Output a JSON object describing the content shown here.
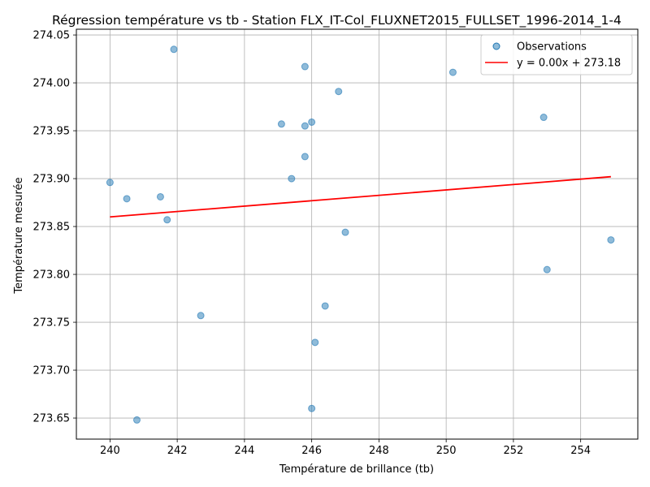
{
  "chart_data": {
    "type": "scatter",
    "title": "Régression température vs tb - Station FLX_IT-Col_FLUXNET2015_FULLSET_1996-2014_1-4",
    "xlabel": "Température de brillance (tb)",
    "ylabel": "Température mesurée",
    "xlim": [
      239.0,
      255.7
    ],
    "ylim": [
      273.628,
      274.056
    ],
    "xticks": [
      240,
      242,
      244,
      246,
      248,
      250,
      252,
      254
    ],
    "xtick_labels": [
      "240",
      "242",
      "244",
      "246",
      "248",
      "250",
      "252",
      "254"
    ],
    "yticks": [
      273.65,
      273.7,
      273.75,
      273.8,
      273.85,
      273.9,
      273.95,
      274.0,
      274.05
    ],
    "ytick_labels": [
      "273.65",
      "273.70",
      "273.75",
      "273.80",
      "273.85",
      "273.90",
      "273.95",
      "274.00",
      "274.05"
    ],
    "grid": true,
    "legend_position": "top-right",
    "series": [
      {
        "name": "Observations",
        "kind": "scatter",
        "color": "#1f77b4",
        "points": [
          {
            "x": 241.9,
            "y": 274.035
          },
          {
            "x": 245.8,
            "y": 274.017
          },
          {
            "x": 250.2,
            "y": 274.011
          },
          {
            "x": 246.8,
            "y": 273.991
          },
          {
            "x": 252.9,
            "y": 273.964
          },
          {
            "x": 246.0,
            "y": 273.959
          },
          {
            "x": 245.1,
            "y": 273.957
          },
          {
            "x": 245.8,
            "y": 273.955
          },
          {
            "x": 245.8,
            "y": 273.923
          },
          {
            "x": 245.4,
            "y": 273.9
          },
          {
            "x": 240.0,
            "y": 273.896
          },
          {
            "x": 241.5,
            "y": 273.881
          },
          {
            "x": 240.5,
            "y": 273.879
          },
          {
            "x": 241.7,
            "y": 273.857
          },
          {
            "x": 247.0,
            "y": 273.844
          },
          {
            "x": 254.9,
            "y": 273.836
          },
          {
            "x": 253.0,
            "y": 273.805
          },
          {
            "x": 246.4,
            "y": 273.767
          },
          {
            "x": 242.7,
            "y": 273.757
          },
          {
            "x": 246.1,
            "y": 273.729
          },
          {
            "x": 246.0,
            "y": 273.66
          },
          {
            "x": 240.8,
            "y": 273.648
          }
        ]
      },
      {
        "name": "y = 0.00x + 273.18",
        "kind": "line",
        "color": "#ff0000",
        "points": [
          {
            "x": 240.0,
            "y": 273.86
          },
          {
            "x": 254.9,
            "y": 273.902
          }
        ]
      }
    ]
  }
}
